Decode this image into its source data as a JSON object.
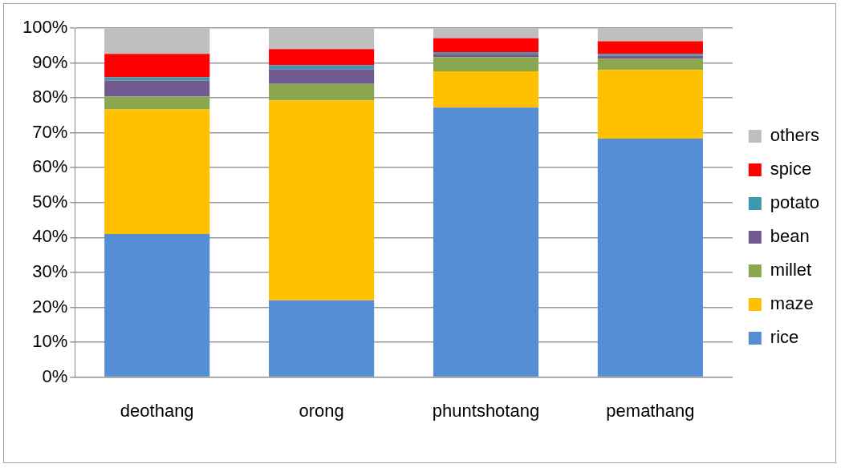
{
  "chart_data": {
    "type": "bar",
    "stacked": true,
    "categories": [
      "deothang",
      "orong",
      "phuntshotang",
      "pemathang"
    ],
    "series": [
      {
        "name": "rice",
        "color": "#558ed5",
        "values": [
          41,
          22,
          77.2,
          68.3
        ]
      },
      {
        "name": "maze",
        "color": "#ffc000",
        "values": [
          35.7,
          57.3,
          10.4,
          19.7
        ]
      },
      {
        "name": "millet",
        "color": "#8aa64e",
        "values": [
          3.7,
          4.7,
          4.1,
          3.2
        ]
      },
      {
        "name": "bean",
        "color": "#725a90",
        "values": [
          4.5,
          4.1,
          0.9,
          0.9
        ]
      },
      {
        "name": "potato",
        "color": "#3e97ab",
        "values": [
          1,
          1.2,
          0.5,
          0.5
        ]
      },
      {
        "name": "spice",
        "color": "#ff0000",
        "values": [
          6.7,
          4.7,
          4,
          3.6
        ]
      },
      {
        "name": "others",
        "color": "#bfbfbf",
        "values": [
          7.4,
          6,
          2.9,
          3.8
        ]
      }
    ],
    "ylim": [
      0,
      100
    ],
    "yticks": [
      {
        "value": 0,
        "label": "0%"
      },
      {
        "value": 10,
        "label": "10%"
      },
      {
        "value": 20,
        "label": "20%"
      },
      {
        "value": 30,
        "label": "30%"
      },
      {
        "value": 40,
        "label": "40%"
      },
      {
        "value": 50,
        "label": "50%"
      },
      {
        "value": 60,
        "label": "60%"
      },
      {
        "value": 70,
        "label": "70%"
      },
      {
        "value": 80,
        "label": "80%"
      },
      {
        "value": 90,
        "label": "90%"
      },
      {
        "value": 100,
        "label": "100%"
      }
    ],
    "grid": "y",
    "legend": "right"
  }
}
